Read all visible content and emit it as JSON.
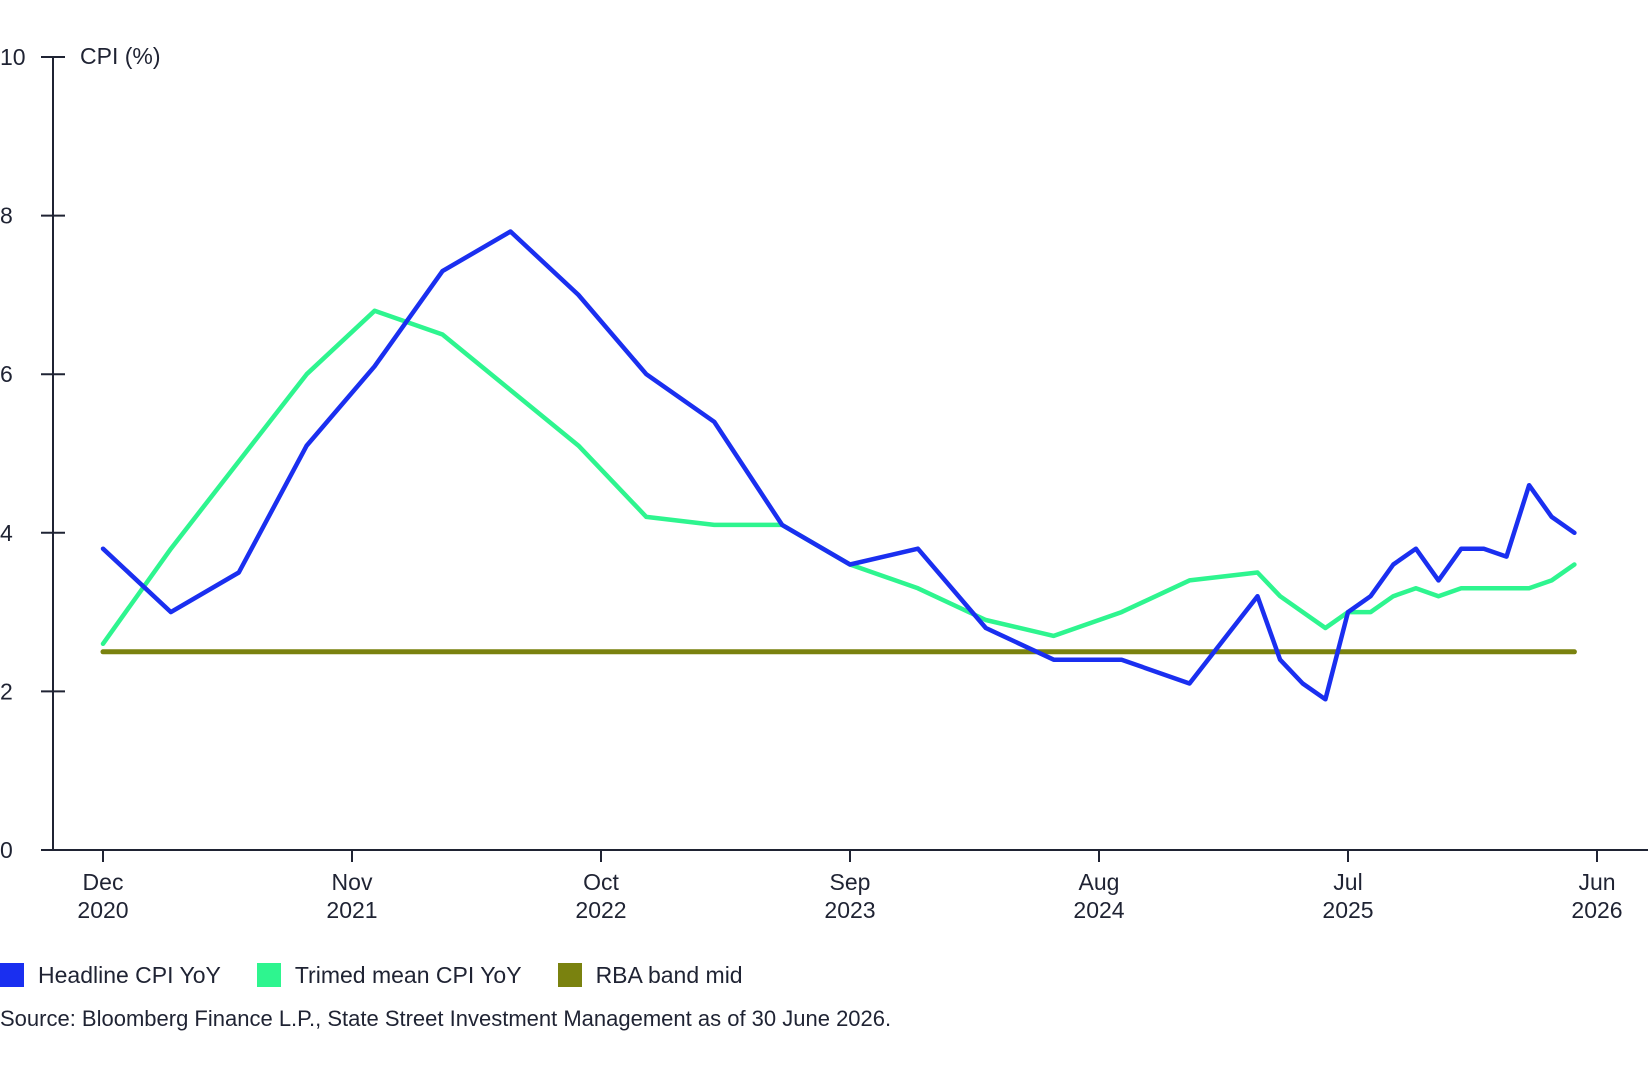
{
  "chart_data": {
    "type": "line",
    "title": "",
    "ylabel": "CPI (%)",
    "xlabel": "",
    "ylim": [
      0,
      10
    ],
    "yticks": [
      "0",
      "2",
      "4",
      "6",
      "8",
      "10"
    ],
    "xlim": [
      "2020-12",
      "2026-06"
    ],
    "xticks": [
      {
        "month": "Dec",
        "year": "2020",
        "date": "2020-12"
      },
      {
        "month": "Nov",
        "year": "2021",
        "date": "2021-11"
      },
      {
        "month": "Oct",
        "year": "2022",
        "date": "2022-10"
      },
      {
        "month": "Sep",
        "year": "2023",
        "date": "2023-09"
      },
      {
        "month": "Aug",
        "year": "2024",
        "date": "2024-08"
      },
      {
        "month": "Jul",
        "year": "2025",
        "date": "2025-07"
      },
      {
        "month": "Jun",
        "year": "2026",
        "date": "2026-06"
      }
    ],
    "grid": false,
    "legend_position": "bottom-left",
    "series": [
      {
        "name": "Headline CPI YoY",
        "color": "#1a2ff0",
        "points": [
          {
            "x": "2020-12",
            "y": 3.8
          },
          {
            "x": "2021-03",
            "y": 3.0
          },
          {
            "x": "2021-06",
            "y": 3.5
          },
          {
            "x": "2021-09",
            "y": 5.1
          },
          {
            "x": "2021-12",
            "y": 6.1
          },
          {
            "x": "2022-03",
            "y": 7.3
          },
          {
            "x": "2022-06",
            "y": 7.8
          },
          {
            "x": "2022-09",
            "y": 7.0
          },
          {
            "x": "2022-12",
            "y": 6.0
          },
          {
            "x": "2023-03",
            "y": 5.4
          },
          {
            "x": "2023-06",
            "y": 4.1
          },
          {
            "x": "2023-09",
            "y": 3.6
          },
          {
            "x": "2023-12",
            "y": 3.8
          },
          {
            "x": "2024-03",
            "y": 2.8
          },
          {
            "x": "2024-06",
            "y": 2.4
          },
          {
            "x": "2024-09",
            "y": 2.4
          },
          {
            "x": "2024-12",
            "y": 2.1
          },
          {
            "x": "2025-03",
            "y": 3.2
          },
          {
            "x": "2025-04",
            "y": 2.4
          },
          {
            "x": "2025-05",
            "y": 2.1
          },
          {
            "x": "2025-06",
            "y": 1.9
          },
          {
            "x": "2025-07",
            "y": 3.0
          },
          {
            "x": "2025-08",
            "y": 3.2
          },
          {
            "x": "2025-09",
            "y": 3.6
          },
          {
            "x": "2025-10",
            "y": 3.8
          },
          {
            "x": "2025-11",
            "y": 3.4
          },
          {
            "x": "2025-12",
            "y": 3.8
          },
          {
            "x": "2026-01",
            "y": 3.8
          },
          {
            "x": "2026-02",
            "y": 3.7
          },
          {
            "x": "2026-03",
            "y": 4.6
          },
          {
            "x": "2026-04",
            "y": 4.2
          },
          {
            "x": "2026-05",
            "y": 4.0
          }
        ]
      },
      {
        "name": "Trimed mean CPI YoY",
        "color": "#2ef58f",
        "points": [
          {
            "x": "2020-12",
            "y": 2.6
          },
          {
            "x": "2021-03",
            "y": 3.8
          },
          {
            "x": "2021-06",
            "y": 4.9
          },
          {
            "x": "2021-09",
            "y": 6.0
          },
          {
            "x": "2021-12",
            "y": 6.8
          },
          {
            "x": "2022-03",
            "y": 6.5
          },
          {
            "x": "2022-06",
            "y": 5.8
          },
          {
            "x": "2022-09",
            "y": 5.1
          },
          {
            "x": "2022-12",
            "y": 4.2
          },
          {
            "x": "2023-03",
            "y": 4.1
          },
          {
            "x": "2023-06",
            "y": 4.1
          },
          {
            "x": "2023-09",
            "y": 3.6
          },
          {
            "x": "2023-12",
            "y": 3.3
          },
          {
            "x": "2024-03",
            "y": 2.9
          },
          {
            "x": "2024-06",
            "y": 2.7
          },
          {
            "x": "2024-09",
            "y": 3.0
          },
          {
            "x": "2024-12",
            "y": 3.4
          },
          {
            "x": "2025-03",
            "y": 3.5
          },
          {
            "x": "2025-04",
            "y": 3.2
          },
          {
            "x": "2025-06",
            "y": 2.8
          },
          {
            "x": "2025-07",
            "y": 3.0
          },
          {
            "x": "2025-08",
            "y": 3.0
          },
          {
            "x": "2025-09",
            "y": 3.2
          },
          {
            "x": "2025-10",
            "y": 3.3
          },
          {
            "x": "2025-11",
            "y": 3.2
          },
          {
            "x": "2025-12",
            "y": 3.3
          },
          {
            "x": "2026-01",
            "y": 3.3
          },
          {
            "x": "2026-02",
            "y": 3.3
          },
          {
            "x": "2026-03",
            "y": 3.3
          },
          {
            "x": "2026-04",
            "y": 3.4
          },
          {
            "x": "2026-05",
            "y": 3.6
          }
        ]
      },
      {
        "name": "RBA band mid",
        "color": "#7a820f",
        "points": [
          {
            "x": "2020-12",
            "y": 2.5
          },
          {
            "x": "2026-05",
            "y": 2.5
          }
        ]
      }
    ]
  },
  "source": "Source: Bloomberg Finance L.P., State Street Investment Management as of 30 June 2026."
}
